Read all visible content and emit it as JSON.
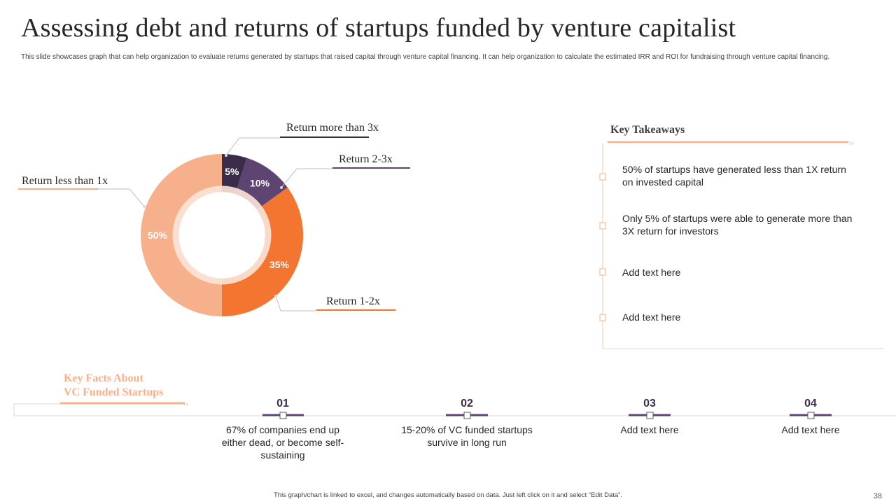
{
  "title": "Assessing debt and returns of startups funded by venture capitalist",
  "subtitle": "This slide showcases graph that can help organization to evaluate returns generated by startups that raised capital through venture capital financing. It can help organization to calculate the estimated IRR  and ROI  for fundraising through venture capital financing.",
  "chart_data": {
    "type": "pie",
    "variant": "donut",
    "title": "",
    "categories": [
      "Return more than 3x",
      "Return 2-3x",
      "Return 1-2x",
      "Return less than 1x"
    ],
    "values": [
      5,
      10,
      35,
      50
    ],
    "value_labels": [
      "5%",
      "10%",
      "35%",
      "50%"
    ],
    "colors": [
      "#3b2d4a",
      "#5e4470",
      "#f47530",
      "#f7b08c"
    ]
  },
  "key_takeaways": {
    "title": "Key Takeaways",
    "items": [
      "50% of startups have generated less than 1X return on invested capital",
      "Only 5% of startups were able to generate more than 3X return for investors",
      "Add text here",
      "Add text here"
    ]
  },
  "key_facts": {
    "title_line1": "Key Facts About",
    "title_line2": "VC Funded Startups",
    "items": [
      {
        "number": "01",
        "text": "67% of companies end up either dead, or become self-sustaining"
      },
      {
        "number": "02",
        "text": "15-20% of VC funded startups survive in long run"
      },
      {
        "number": "03",
        "text": "Add text here"
      },
      {
        "number": "04",
        "text": "Add text here"
      }
    ]
  },
  "footer_note": "This graph/chart is linked to excel, and changes automatically based on data. Just left click on it and select “Edit Data”.",
  "page_number": "38",
  "colors": {
    "dark_purple": "#3b2d4a",
    "purple": "#5e4470",
    "orange": "#f47530",
    "peach": "#f7b08c",
    "line_peach": "#f6b18b"
  }
}
